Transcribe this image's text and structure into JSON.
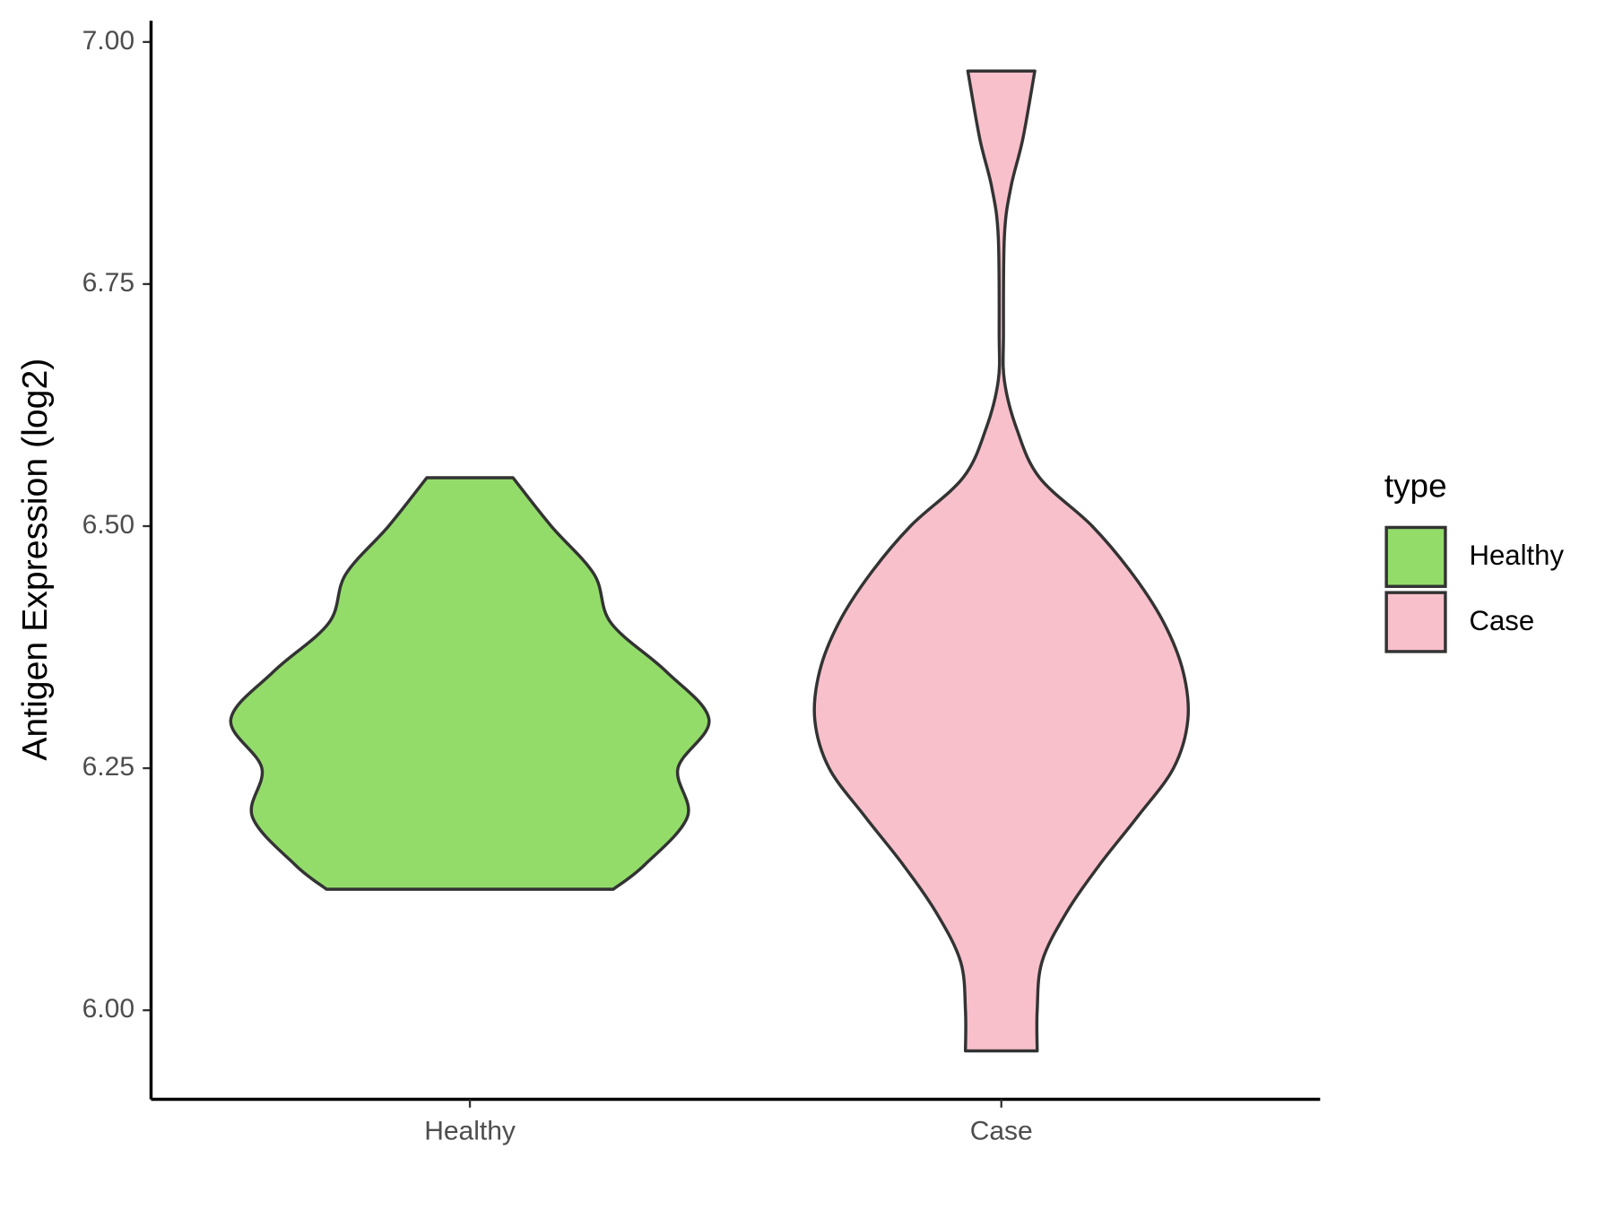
{
  "chart_data": {
    "type": "violin",
    "y_label": "Antigen Expression (log2)",
    "legend_title": "type",
    "categories": [
      "Healthy",
      "Case"
    ],
    "series": [
      {
        "name": "Healthy",
        "color": "#93dc6a",
        "values": [
          6.55,
          6.5,
          6.45,
          6.4,
          6.35,
          6.3,
          6.25,
          6.2,
          6.15,
          6.125
        ],
        "density": [
          0.18,
          0.34,
          0.52,
          0.59,
          0.82,
          1,
          0.87,
          0.91,
          0.73,
          0.6
        ]
      },
      {
        "name": "Case",
        "color": "#f8c0cb",
        "values": [
          6.97,
          6.9,
          6.85,
          6.8,
          6.7,
          6.65,
          6.6,
          6.55,
          6.5,
          6.45,
          6.4,
          6.35,
          6.3,
          6.25,
          6.2,
          6.15,
          6.1,
          6.05,
          6.0,
          5.958
        ],
        "density": [
          0.14,
          0.09,
          0.04,
          0.013,
          0.009,
          0.013,
          0.065,
          0.16,
          0.38,
          0.55,
          0.68,
          0.76,
          0.78,
          0.72,
          0.57,
          0.41,
          0.27,
          0.17,
          0.15,
          0.15
        ]
      }
    ],
    "ylim": [
      5.908,
      7.022
    ],
    "yticks": [
      {
        "value": 6,
        "label": "6.00"
      },
      {
        "value": 6.25,
        "label": "6.25"
      },
      {
        "value": 6.5,
        "label": "6.50"
      },
      {
        "value": 6.75,
        "label": "6.75"
      },
      {
        "value": 7,
        "label": "7.00"
      }
    ]
  }
}
